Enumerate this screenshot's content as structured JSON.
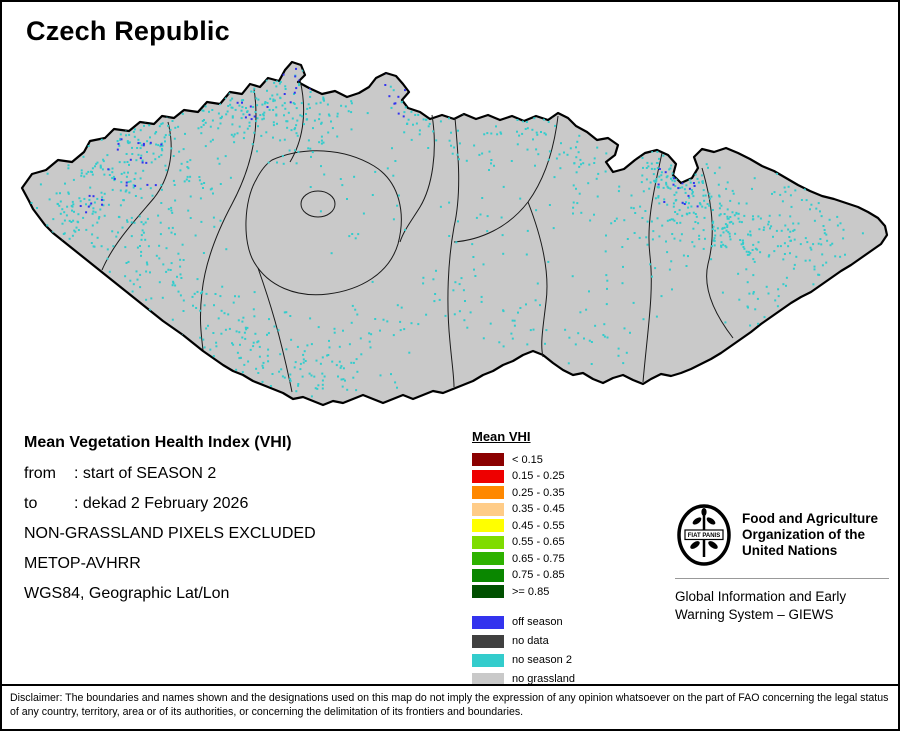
{
  "title": "Czech Republic",
  "info": {
    "heading": "Mean Vegetation Health Index (VHI)",
    "rows": [
      {
        "label": "from",
        "text": ": start of SEASON 2"
      },
      {
        "label": "to",
        "text": ": dekad 2 February 2026"
      }
    ],
    "lines": [
      "NON-GRASSLAND PIXELS EXCLUDED",
      "METOP-AVHRR",
      "WGS84, Geographic Lat/Lon"
    ]
  },
  "legend": {
    "title": "Mean VHI",
    "classes": [
      {
        "label": "< 0.15",
        "color": "#8b0000"
      },
      {
        "label": "0.15 - 0.25",
        "color": "#ee0000"
      },
      {
        "label": "0.25 - 0.35",
        "color": "#ff8800"
      },
      {
        "label": "0.35 - 0.45",
        "color": "#ffcc88"
      },
      {
        "label": "0.45 - 0.55",
        "color": "#ffff00"
      },
      {
        "label": "0.55 - 0.65",
        "color": "#7fdc00"
      },
      {
        "label": "0.65 - 0.75",
        "color": "#2eb200"
      },
      {
        "label": "0.75 - 0.85",
        "color": "#0a8700"
      },
      {
        "label": ">= 0.85",
        "color": "#005000"
      }
    ],
    "extra": [
      {
        "label": "off season",
        "color": "#3333ee"
      },
      {
        "label": "no data",
        "color": "#404040"
      },
      {
        "label": "no season 2",
        "color": "#33cccc"
      },
      {
        "label": "no grassland",
        "color": "#c9c9c9"
      }
    ]
  },
  "map": {
    "country": "Czech Republic",
    "outline_color": "#000000"
  },
  "fao": {
    "org_name": "Food and Agriculture Organization of the United Nations",
    "giews": "Global Information and Early Warning System – GIEWS",
    "logo_motto": "FIAT PANIS"
  },
  "disclaimer": "Disclaimer: The boundaries and names shown and the designations used on this map do not imply the expression of any opinion whatsoever on the part of FAO concerning the legal status of any country, territory, area or of its authorities, or concerning the delimitation of its frontiers and boundaries."
}
